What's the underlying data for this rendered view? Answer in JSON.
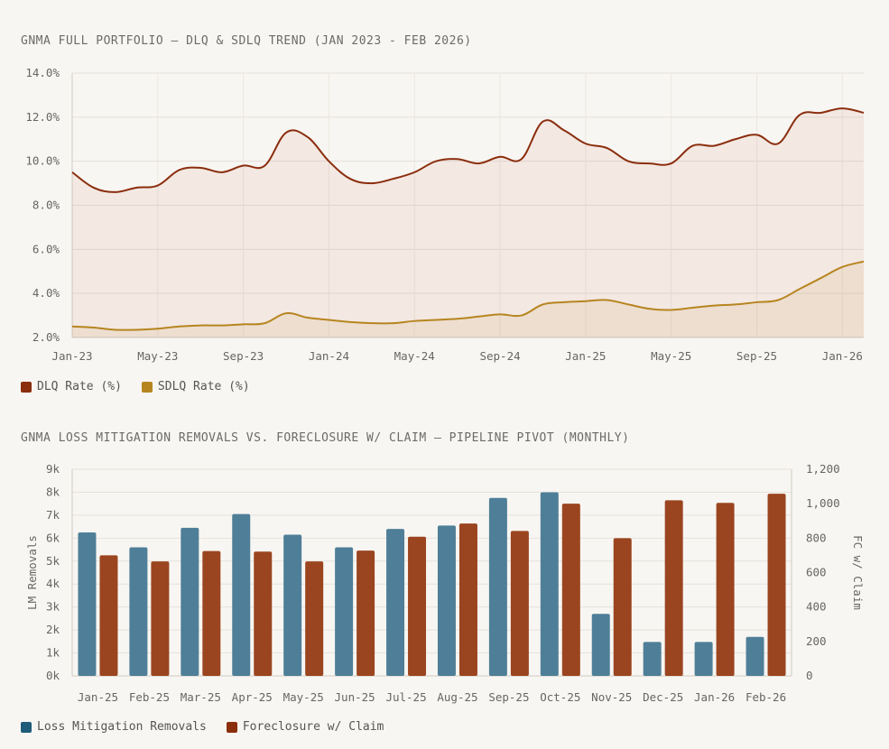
{
  "chart_data": [
    {
      "type": "line",
      "title": "GNMA FULL PORTFOLIO — DLQ & SDLQ TREND (JAN 2023 - FEB 2026)",
      "x": [
        "Jan-23",
        "Feb-23",
        "Mar-23",
        "Apr-23",
        "May-23",
        "Jun-23",
        "Jul-23",
        "Aug-23",
        "Sep-23",
        "Oct-23",
        "Nov-23",
        "Dec-23",
        "Jan-24",
        "Feb-24",
        "Mar-24",
        "Apr-24",
        "May-24",
        "Jun-24",
        "Jul-24",
        "Aug-24",
        "Sep-24",
        "Oct-24",
        "Nov-24",
        "Dec-24",
        "Jan-25",
        "Feb-25",
        "Mar-25",
        "Apr-25",
        "May-25",
        "Jun-25",
        "Jul-25",
        "Aug-25",
        "Sep-25",
        "Oct-25",
        "Nov-25",
        "Dec-25",
        "Jan-26",
        "Feb-26"
      ],
      "x_tick_labels": [
        "Jan-23",
        "May-23",
        "Sep-23",
        "Jan-24",
        "May-24",
        "Sep-24",
        "Jan-25",
        "May-25",
        "Sep-25",
        "Jan-26"
      ],
      "y_tick_labels": [
        "2.0%",
        "4.0%",
        "6.0%",
        "8.0%",
        "10.0%",
        "12.0%",
        "14.0%"
      ],
      "ylim": [
        2,
        14
      ],
      "series": [
        {
          "name": "DLQ Rate (%)",
          "color": "#8b2e0e",
          "fill": "rgba(205,140,120,0.13)",
          "values": [
            9.5,
            8.8,
            8.6,
            8.8,
            8.9,
            9.6,
            9.7,
            9.5,
            9.8,
            9.8,
            11.3,
            11.1,
            10.0,
            9.2,
            9.0,
            9.2,
            9.5,
            10.0,
            10.1,
            9.9,
            10.2,
            10.1,
            11.8,
            11.4,
            10.8,
            10.6,
            10.0,
            9.9,
            9.9,
            10.7,
            10.7,
            11.0,
            11.2,
            10.8,
            12.1,
            12.2,
            12.4,
            12.2
          ]
        },
        {
          "name": "SDLQ Rate (%)",
          "color": "#b78520",
          "fill": "rgba(200,160,80,0.12)",
          "values": [
            2.5,
            2.45,
            2.35,
            2.35,
            2.4,
            2.5,
            2.55,
            2.55,
            2.6,
            2.65,
            3.1,
            2.9,
            2.8,
            2.7,
            2.65,
            2.65,
            2.75,
            2.8,
            2.85,
            2.95,
            3.05,
            3.0,
            3.5,
            3.6,
            3.65,
            3.7,
            3.5,
            3.3,
            3.25,
            3.35,
            3.45,
            3.5,
            3.6,
            3.7,
            4.2,
            4.7,
            5.2,
            5.45
          ]
        }
      ]
    },
    {
      "type": "bar",
      "title": "GNMA LOSS MITIGATION REMOVALS VS. FORECLOSURE W/ CLAIM — PIPELINE PIVOT (MONTHLY)",
      "categories": [
        "Jan-25",
        "Feb-25",
        "Mar-25",
        "Apr-25",
        "May-25",
        "Jun-25",
        "Jul-25",
        "Aug-25",
        "Sep-25",
        "Oct-25",
        "Nov-25",
        "Dec-25",
        "Jan-26",
        "Feb-26"
      ],
      "ylabel": "LM Removals",
      "y2label": "FC w/ Claim",
      "ylim": [
        0,
        9000
      ],
      "y2lim": [
        0,
        1200
      ],
      "y_tick_labels": [
        "0k",
        "1k",
        "2k",
        "3k",
        "4k",
        "5k",
        "6k",
        "7k",
        "8k",
        "9k"
      ],
      "y2_tick_labels": [
        "0",
        "200",
        "400",
        "600",
        "800",
        "1,000",
        "1,200"
      ],
      "series": [
        {
          "name": "Loss Mitigation Removals",
          "axis": "left",
          "color": "#4f7f98",
          "values": [
            6250,
            5600,
            6450,
            7050,
            6150,
            5600,
            6400,
            6550,
            7750,
            8000,
            2700,
            1480,
            1480,
            1700
          ]
        },
        {
          "name": "Foreclosure w/ Claim",
          "axis": "right",
          "color": "#9a4520",
          "values": [
            700,
            665,
            725,
            722,
            665,
            728,
            808,
            885,
            842,
            1000,
            800,
            1020,
            1005,
            1058
          ]
        }
      ]
    }
  ],
  "legend1": [
    {
      "label": "DLQ Rate (%)",
      "color": "#8b2e0e"
    },
    {
      "label": "SDLQ Rate (%)",
      "color": "#b78520"
    }
  ],
  "legend2": [
    {
      "label": "Loss Mitigation Removals",
      "color": "#1f5c7a"
    },
    {
      "label": "Foreclosure w/ Claim",
      "color": "#8b2e0e"
    }
  ]
}
